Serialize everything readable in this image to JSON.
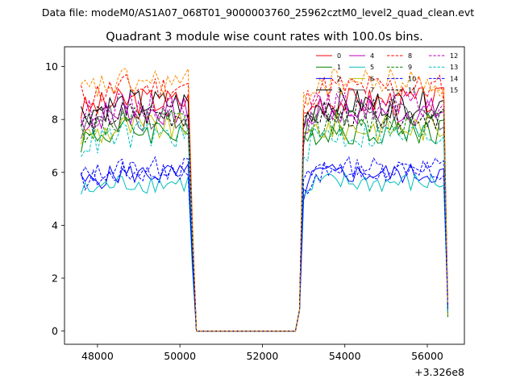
{
  "chart_data": {
    "type": "line",
    "suptitle": "Data file: modeM0/AS1A07_068T01_9000003760_25962cztM0_level2_quad_clean.evt",
    "title": "Quadrant 3 module wise count rates with 100.0s bins.",
    "xlabel": "",
    "ylabel": "",
    "x_offset_text": "+3.326e8",
    "xlim": [
      47200,
      56900
    ],
    "ylim": [
      -0.5,
      10.75
    ],
    "x_ticks": [
      48000,
      50000,
      52000,
      54000,
      56000
    ],
    "y_ticks": [
      0,
      2,
      4,
      6,
      8,
      10
    ],
    "grid": false,
    "legend_position": "top-right",
    "x_start": 47600,
    "x_step": 100,
    "segments": [
      {
        "start": 47600,
        "end": 50200,
        "ramp_down_end": 50400
      },
      {
        "start": 53000,
        "end": 56400,
        "ramp_up_start": 52800,
        "last": 56500
      }
    ],
    "series": [
      {
        "name": "0",
        "color": "#ff0000",
        "dash": false,
        "level": 8.7
      },
      {
        "name": "1",
        "color": "#008000",
        "dash": false,
        "level": 7.6
      },
      {
        "name": "2",
        "color": "#0000ff",
        "dash": false,
        "level": 5.95
      },
      {
        "name": "3",
        "color": "#000000",
        "dash": false,
        "level": 8.6
      },
      {
        "name": "4",
        "color": "#bf00bf",
        "dash": false,
        "level": 8.3
      },
      {
        "name": "5",
        "color": "#00bfbf",
        "dash": false,
        "level": 5.6
      },
      {
        "name": "6",
        "color": "#bfbf00",
        "dash": false,
        "level": 7.7
      },
      {
        "name": "7",
        "color": "#555555",
        "dash": false,
        "level": 8.1
      },
      {
        "name": "8",
        "color": "#ff0000",
        "dash": true,
        "level": 9.2
      },
      {
        "name": "9",
        "color": "#008000",
        "dash": true,
        "level": 7.9
      },
      {
        "name": "10",
        "color": "#0000ff",
        "dash": true,
        "level": 6.2
      },
      {
        "name": "11",
        "color": "#000000",
        "dash": true,
        "level": 8.2
      },
      {
        "name": "12",
        "color": "#bf00bf",
        "dash": true,
        "level": 8.5
      },
      {
        "name": "13",
        "color": "#00bfbf",
        "dash": true,
        "level": 7.4
      },
      {
        "name": "14",
        "color": "#0000ff",
        "dash": true,
        "level": 6.0
      },
      {
        "name": "15",
        "color": "#ff8c00",
        "dash": true,
        "level": 9.4
      }
    ]
  }
}
